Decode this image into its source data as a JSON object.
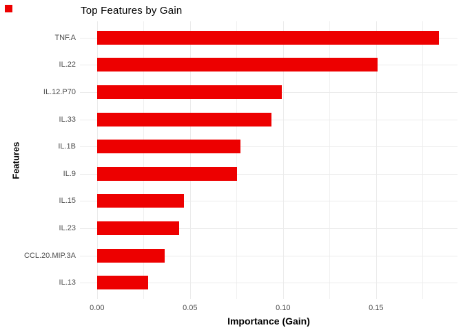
{
  "chart_data": {
    "type": "bar",
    "orientation": "horizontal",
    "title": "Top Features by Gain",
    "xlabel": "Importance (Gain)",
    "ylabel": "Features",
    "categories": [
      "TNF.A",
      "IL.22",
      "IL.12.P70",
      "IL.33",
      "IL.1B",
      "IL.9",
      "IL.15",
      "IL.23",
      "CCL.20.MIP.3A",
      "IL.13"
    ],
    "values": [
      0.184,
      0.151,
      0.0995,
      0.0938,
      0.0772,
      0.0752,
      0.0469,
      0.0441,
      0.0365,
      0.0274
    ],
    "xlim": [
      -0.0092,
      0.1938
    ],
    "x_major_ticks": [
      0,
      0.05,
      0.1,
      0.15
    ],
    "x_tick_labels": [
      "0.00",
      "0.05",
      "0.10",
      "0.15"
    ],
    "x_minor_ticks": [
      0.025,
      0.075,
      0.125,
      0.175
    ],
    "grid": true,
    "legend_position": "none",
    "bar_color": "#ED0000",
    "grid_major_color": "#EBEBEB",
    "grid_minor_color": "#F0F0F0",
    "axis_text_color": "#4d4d4d",
    "background_color": "#FFFFFF",
    "corner_marker_color": "#ED0000"
  }
}
